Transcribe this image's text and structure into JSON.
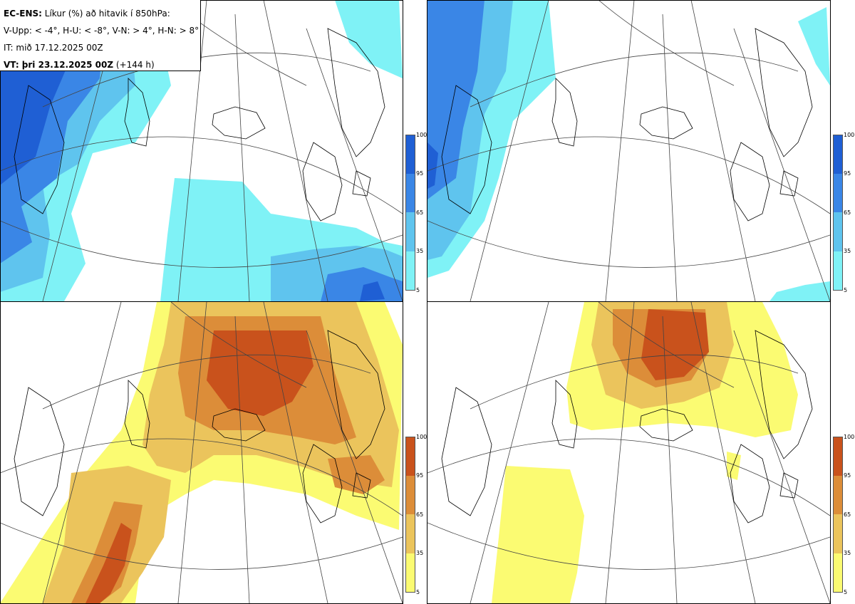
{
  "legend": {
    "line1_bold": "EC-ENS:",
    "line1_rest": " Líkur (%) að hitavik í 850hPa:",
    "line2": "V-Upp: < -4°, H-U: < -8°, V-N: > 4°, H-N: > 8°",
    "line3": "IT: mið 17.12.2025 00Z",
    "line4_bold": "VT: þri 23.12.2025 00Z",
    "line4_rest": " (+144 h)"
  },
  "colorbars": {
    "ticks": [
      "100",
      "95",
      "65",
      "35",
      "5"
    ],
    "cold_colors": [
      "#1f5fd4",
      "#3a86e6",
      "#5fc4ee",
      "#7ff2f6"
    ],
    "warm_colors": [
      "#c9521c",
      "#dc8d39",
      "#ebc45c",
      "#fbfb72"
    ]
  },
  "panels": [
    {
      "id": "V-Upp",
      "theme": "cold"
    },
    {
      "id": "H-U",
      "theme": "cold"
    },
    {
      "id": "V-N",
      "theme": "warm"
    },
    {
      "id": "H-N",
      "theme": "warm"
    }
  ]
}
